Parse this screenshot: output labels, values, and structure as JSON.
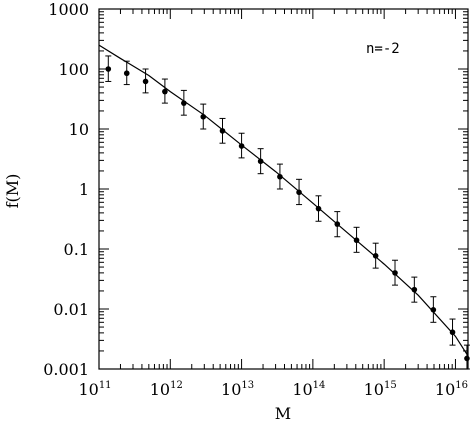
{
  "chart_data": {
    "type": "scatter",
    "xlabel": "M",
    "ylabel": "f(M)",
    "annotation": "n=-2",
    "xscale": "log",
    "yscale": "log",
    "xlim": [
      100000000000.0,
      1.5e+16
    ],
    "ylim": [
      0.001,
      1000
    ],
    "x_ticks": [
      {
        "base": "10",
        "exp": "11",
        "value": 100000000000.0
      },
      {
        "base": "10",
        "exp": "12",
        "value": 1000000000000.0
      },
      {
        "base": "10",
        "exp": "13",
        "value": 10000000000000.0
      },
      {
        "base": "10",
        "exp": "14",
        "value": 100000000000000.0
      },
      {
        "base": "10",
        "exp": "15",
        "value": 1000000000000000.0
      },
      {
        "base": "10",
        "exp": "16",
        "value": 1e+16
      }
    ],
    "y_ticks": [
      {
        "label": "0.001",
        "value": 0.001
      },
      {
        "label": "0.01",
        "value": 0.01
      },
      {
        "label": "0.1",
        "value": 0.1
      },
      {
        "label": "1",
        "value": 1
      },
      {
        "label": "10",
        "value": 10
      },
      {
        "label": "100",
        "value": 100
      },
      {
        "label": "1000",
        "value": 1000
      }
    ],
    "grid": false,
    "series": [
      {
        "kind": "points_with_errorbars",
        "points": [
          {
            "x": 135000000000.0,
            "y": 100,
            "ylo": 62,
            "yhi": 165
          },
          {
            "x": 245000000000.0,
            "y": 85,
            "ylo": 55,
            "yhi": 135
          },
          {
            "x": 450000000000.0,
            "y": 62,
            "ylo": 40,
            "yhi": 100
          },
          {
            "x": 840000000000.0,
            "y": 42,
            "ylo": 27,
            "yhi": 68
          },
          {
            "x": 1550000000000.0,
            "y": 27,
            "ylo": 17,
            "yhi": 44
          },
          {
            "x": 2900000000000.0,
            "y": 16,
            "ylo": 10,
            "yhi": 26
          },
          {
            "x": 5400000000000.0,
            "y": 9.3,
            "ylo": 5.8,
            "yhi": 15
          },
          {
            "x": 10000000000000.0,
            "y": 5.2,
            "ylo": 3.3,
            "yhi": 8.5
          },
          {
            "x": 18500000000000.0,
            "y": 2.9,
            "ylo": 1.8,
            "yhi": 4.7
          },
          {
            "x": 34500000000000.0,
            "y": 1.6,
            "ylo": 1.0,
            "yhi": 2.6
          },
          {
            "x": 64000000000000.0,
            "y": 0.88,
            "ylo": 0.55,
            "yhi": 1.45
          },
          {
            "x": 120000000000000.0,
            "y": 0.47,
            "ylo": 0.29,
            "yhi": 0.77
          },
          {
            "x": 220000000000000.0,
            "y": 0.26,
            "ylo": 0.16,
            "yhi": 0.42
          },
          {
            "x": 410000000000000.0,
            "y": 0.14,
            "ylo": 0.088,
            "yhi": 0.23
          },
          {
            "x": 760000000000000.0,
            "y": 0.077,
            "ylo": 0.048,
            "yhi": 0.125
          },
          {
            "x": 1420000000000000.0,
            "y": 0.04,
            "ylo": 0.025,
            "yhi": 0.065
          },
          {
            "x": 2650000000000000.0,
            "y": 0.021,
            "ylo": 0.013,
            "yhi": 0.034
          },
          {
            "x": 4900000000000000.0,
            "y": 0.0097,
            "ylo": 0.006,
            "yhi": 0.016
          },
          {
            "x": 9100000000000000.0,
            "y": 0.0041,
            "ylo": 0.0025,
            "yhi": 0.0068
          },
          {
            "x": 1.45e+16,
            "y": 0.0015,
            "ylo": 0.001,
            "yhi": 0.0025
          }
        ]
      },
      {
        "kind": "line",
        "points": [
          {
            "x": 100000000000.0,
            "y": 250
          },
          {
            "x": 200000000000.0,
            "y": 150
          },
          {
            "x": 500000000000.0,
            "y": 78
          },
          {
            "x": 1000000000000.0,
            "y": 42
          },
          {
            "x": 3000000000000.0,
            "y": 17
          },
          {
            "x": 10000000000000.0,
            "y": 5.4
          },
          {
            "x": 30000000000000.0,
            "y": 1.95
          },
          {
            "x": 100000000000000.0,
            "y": 0.58
          },
          {
            "x": 300000000000000.0,
            "y": 0.19
          },
          {
            "x": 1000000000000000.0,
            "y": 0.056
          },
          {
            "x": 3000000000000000.0,
            "y": 0.017
          },
          {
            "x": 1e+16,
            "y": 0.0035
          },
          {
            "x": 1.5e+16,
            "y": 0.00165
          }
        ]
      }
    ]
  }
}
